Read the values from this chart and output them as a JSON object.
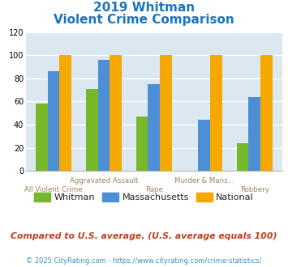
{
  "title_line1": "2019 Whitman",
  "title_line2": "Violent Crime Comparison",
  "categories": [
    "All Violent Crime",
    "Aggravated Assault",
    "Rape",
    "Murder & Mans...",
    "Robbery"
  ],
  "cat_top": [
    "",
    "Aggravated Assault",
    "",
    "Murder & Mans...",
    ""
  ],
  "cat_bot": [
    "All Violent Crime",
    "",
    "Rape",
    "",
    "Robbery"
  ],
  "whitman": [
    58,
    71,
    47,
    0,
    24
  ],
  "massachusetts": [
    86,
    96,
    75,
    44,
    64
  ],
  "national": [
    100,
    100,
    100,
    100,
    100
  ],
  "color_whitman": "#76b82a",
  "color_massachusetts": "#4d8fd6",
  "color_national": "#f5a800",
  "ylim": [
    0,
    120
  ],
  "yticks": [
    0,
    20,
    40,
    60,
    80,
    100,
    120
  ],
  "background_color": "#dce8f0",
  "title_color": "#1a75bc",
  "xlabel_color": "#a08060",
  "footnote": "Compared to U.S. average. (U.S. average equals 100)",
  "copyright": "© 2025 CityRating.com - https://www.cityrating.com/crime-statistics/",
  "footnote_color": "#c04020",
  "copyright_color": "#4090c0",
  "legend_labels": [
    "Whitman",
    "Massachusetts",
    "National"
  ]
}
